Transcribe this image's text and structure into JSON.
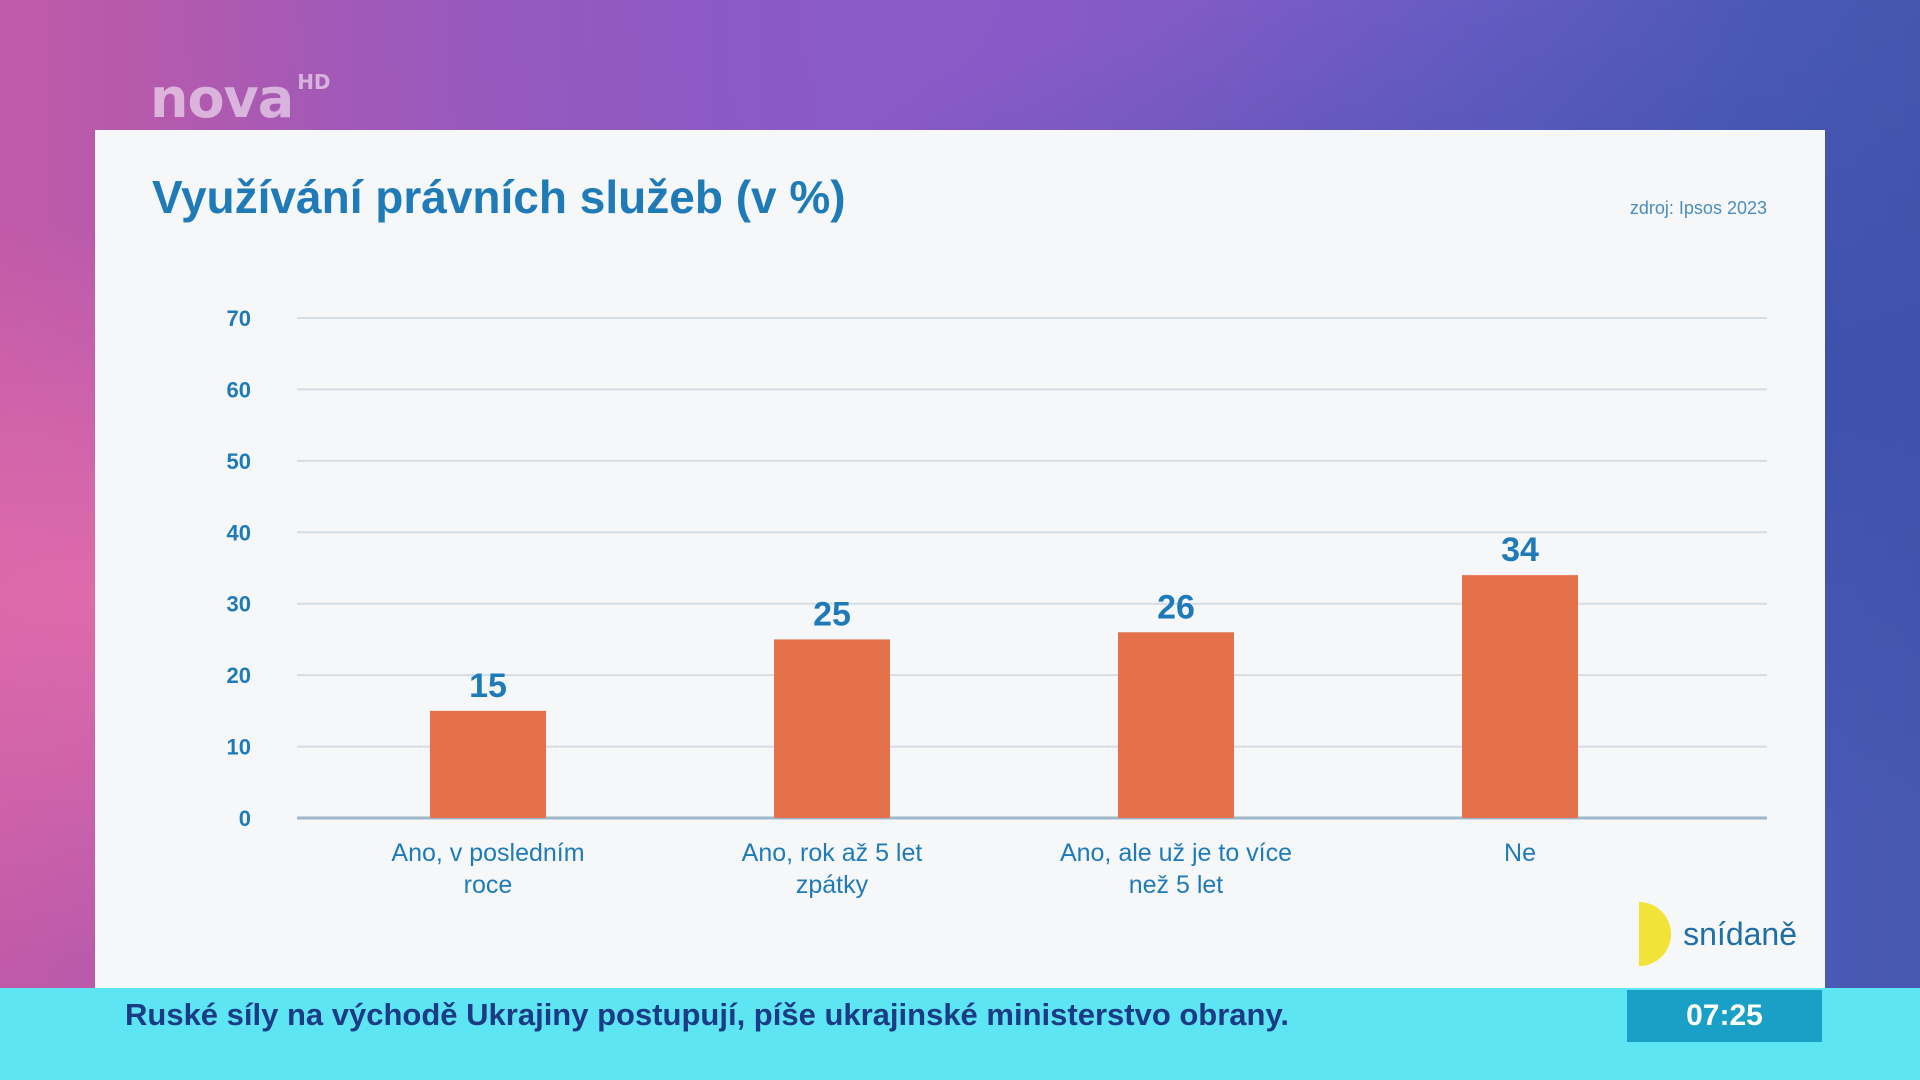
{
  "channel": {
    "logo": "nova",
    "logo_suffix": "HD"
  },
  "chart_data": {
    "type": "bar",
    "title": "Využívání právních služeb (v %)",
    "source": "zdroj: Ipsos 2023",
    "categories": [
      [
        "Ano, v posledním",
        "roce"
      ],
      [
        "Ano, rok až 5 let",
        "zpátky"
      ],
      [
        "Ano, ale už je to více",
        "než 5 let"
      ],
      [
        "Ne"
      ]
    ],
    "values": [
      15,
      25,
      26,
      34
    ],
    "ylim": [
      0,
      70
    ],
    "yticks": [
      0,
      10,
      20,
      30,
      40,
      50,
      60,
      70
    ],
    "grid": true,
    "bar_color": "#e5714a",
    "label_color": "#1f7bb8"
  },
  "program": {
    "name": "snídaně"
  },
  "ticker": {
    "headline": "Ruské síly na východě Ukrajiny postupují, píše ukrajinské ministerstvo obrany.",
    "time": "07:25"
  }
}
